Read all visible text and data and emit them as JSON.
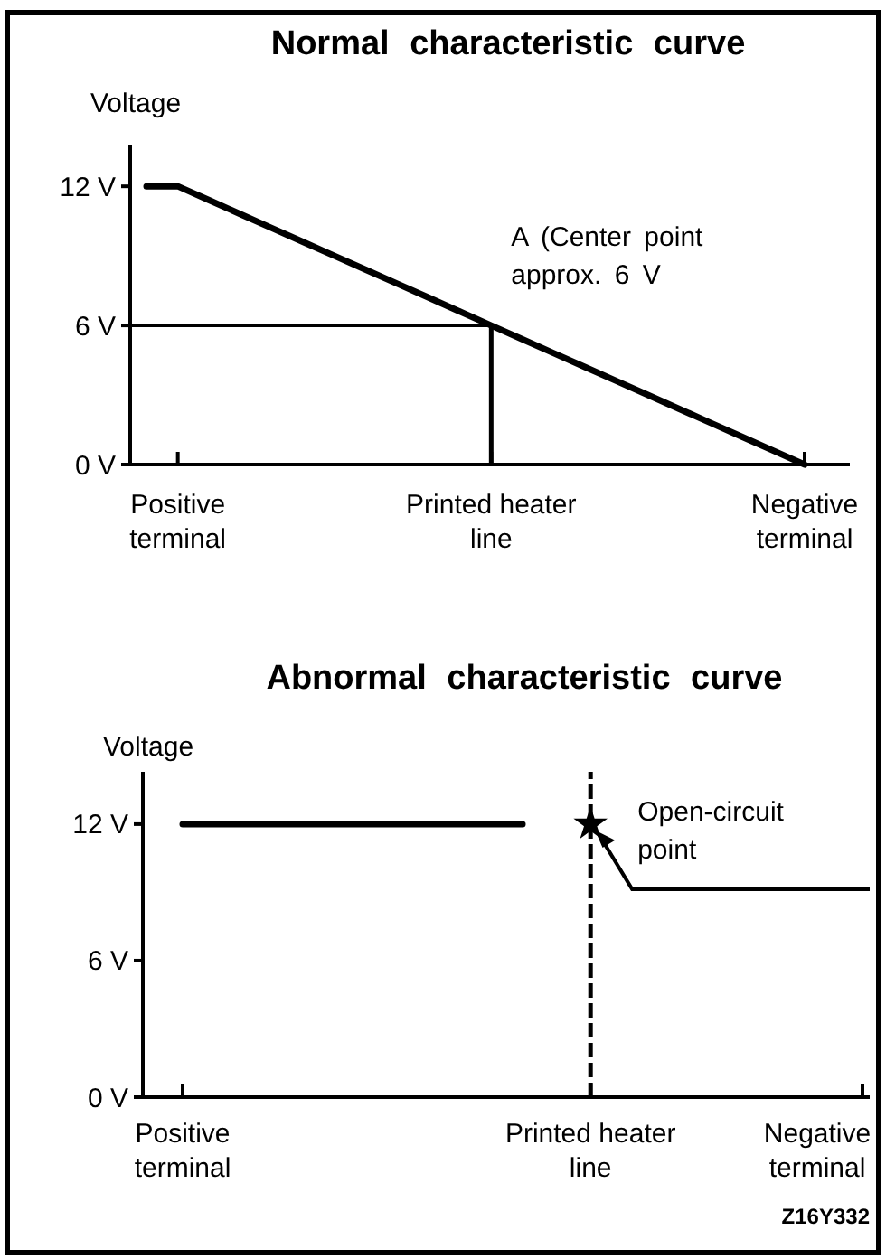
{
  "chart_data": [
    {
      "type": "line",
      "title": "Normal characteristic curve",
      "ylabel": "Voltage",
      "categories": [
        null,
        "Positive terminal",
        null,
        null,
        null,
        null,
        null,
        null,
        null,
        null,
        null,
        "Printed heater line",
        null,
        null,
        null,
        null,
        null,
        null,
        null,
        null,
        null,
        "Negative terminal"
      ],
      "ylim": [
        0,
        13.8
      ],
      "yticks": [
        {
          "value": 0,
          "label": "0 V"
        },
        {
          "value": 6,
          "label": "6 V"
        },
        {
          "value": 12,
          "label": "12 V"
        }
      ],
      "series": [
        {
          "color": "#000000",
          "values": [
            12,
            12,
            11.4,
            10.8,
            10.2,
            9.6,
            9,
            8.4,
            7.8,
            7.2,
            6.6,
            6,
            5.4,
            4.8,
            4.2,
            3.6,
            3,
            2.4,
            1.8,
            1.2,
            0.6,
            0
          ]
        }
      ],
      "ref_lines": [
        {
          "axis": "y",
          "value": 6,
          "color": "#000000"
        },
        {
          "axis": "x",
          "value": "Printed heater line",
          "color": "#000000"
        }
      ],
      "annotations": [
        {
          "text": "A (Center point approx. 6 V",
          "x": "Printed heater line",
          "y": 6
        }
      ]
    },
    {
      "type": "line",
      "title": "Abnormal characteristic curve",
      "ylabel": "Voltage",
      "categories": [
        "Positive terminal",
        null,
        null,
        null,
        null,
        null,
        null,
        null,
        null,
        null,
        null,
        null,
        "Printed heater line",
        null,
        null,
        null,
        null,
        null,
        null,
        null,
        "Negative terminal"
      ],
      "ylim": [
        0,
        14.3
      ],
      "yticks": [
        {
          "value": 0,
          "label": "0 V"
        },
        {
          "value": 6,
          "label": "6 V"
        },
        {
          "value": 12,
          "label": "12 V"
        }
      ],
      "series": [
        {
          "color": "#000000",
          "values": [
            12,
            12,
            12,
            12,
            12,
            12,
            12,
            12,
            12,
            12,
            12,
            null,
            null,
            null,
            null,
            null,
            null,
            null,
            null,
            null,
            null
          ]
        },
        {
          "type": "scatter",
          "color": "#000000",
          "marker": "star",
          "values": [
            null,
            null,
            null,
            null,
            null,
            null,
            null,
            null,
            null,
            null,
            null,
            null,
            12,
            null,
            null,
            null,
            null,
            null,
            null,
            null,
            null
          ]
        }
      ],
      "ref_lines": [
        {
          "axis": "x",
          "value": "Printed heater line",
          "color": "#000000",
          "line_style": "dashed"
        }
      ],
      "annotations": [
        {
          "text": "Open-circuit point",
          "x": "Printed heater line",
          "y": 12
        },
        "Z16Y332"
      ]
    }
  ]
}
